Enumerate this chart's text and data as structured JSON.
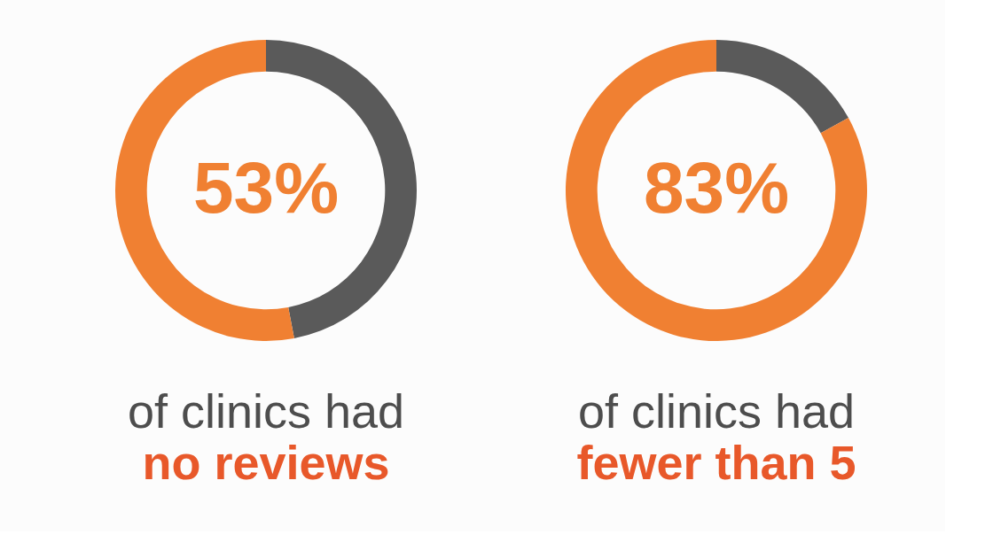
{
  "chart_data": [
    {
      "type": "donut",
      "categories": [
        null,
        null
      ],
      "values": [
        47,
        53
      ],
      "colors": [
        "#5a5a5a",
        "#f08032"
      ],
      "value_labels": [
        null,
        "53%"
      ],
      "annotations": [
        "of clinics had",
        "no reviews"
      ]
    },
    {
      "type": "donut",
      "categories": [
        null,
        null
      ],
      "values": [
        17,
        83
      ],
      "colors": [
        "#5a5a5a",
        "#f08032"
      ],
      "value_labels": [
        null,
        "83%"
      ],
      "annotations": [
        "of clinics had",
        "fewer than 5"
      ]
    }
  ]
}
